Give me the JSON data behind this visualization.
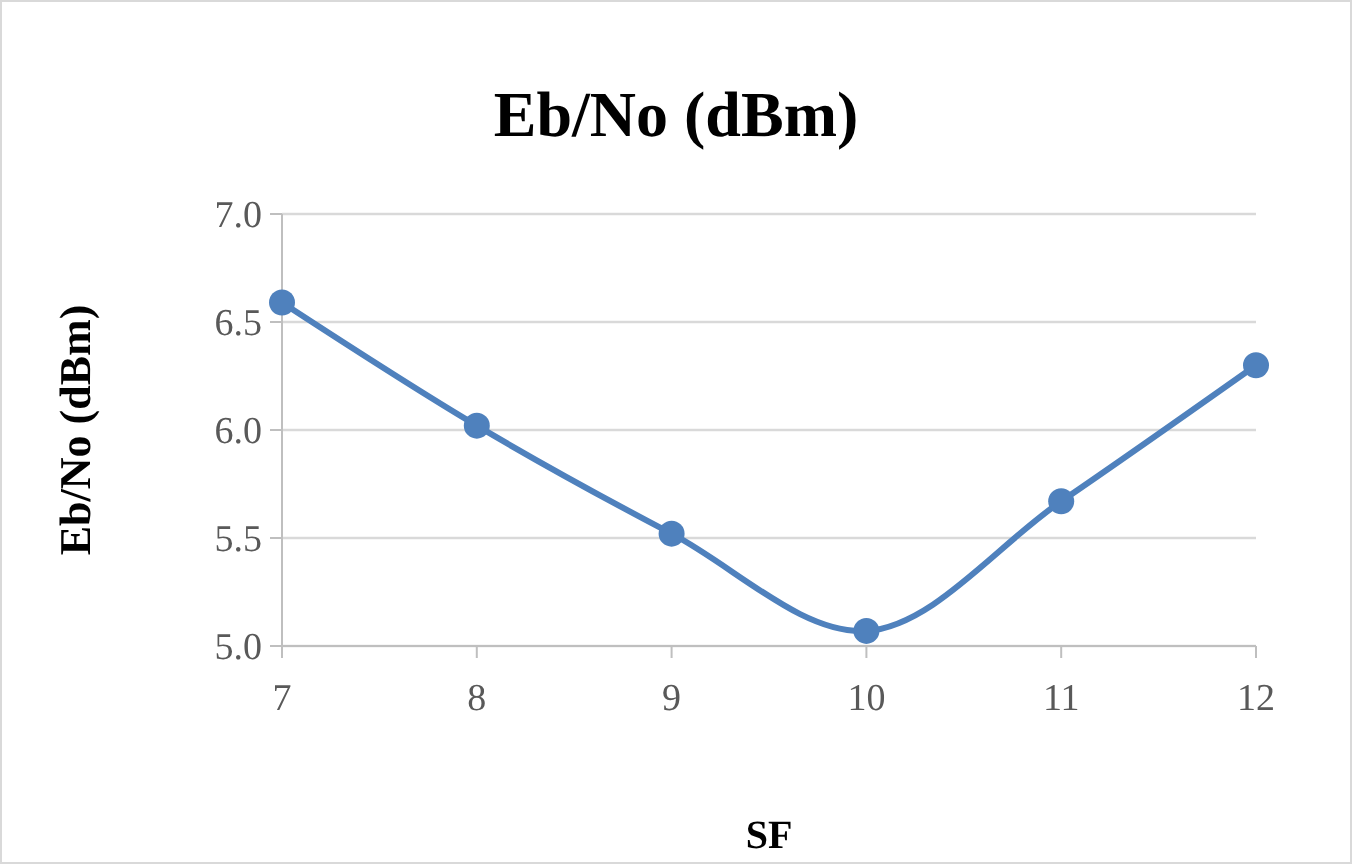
{
  "chart_data": {
    "type": "line",
    "title": "Eb/No (dBm)",
    "xlabel": "SF",
    "ylabel": "Eb/No (dBm)",
    "x": [
      7,
      8,
      9,
      10,
      11,
      12
    ],
    "series": [
      {
        "color": "#4f81bd",
        "values": [
          6.59,
          6.02,
          5.52,
          5.07,
          5.67,
          6.3
        ]
      }
    ],
    "xlim": [
      7,
      12
    ],
    "xticks": [
      7,
      8,
      9,
      10,
      11,
      12
    ],
    "ylim": [
      5,
      7
    ],
    "yticks": [
      {
        "value": 5,
        "label": "5.0"
      },
      {
        "value": 5.5,
        "label": "5.5"
      },
      {
        "value": 6,
        "label": "6.0"
      },
      {
        "value": 6.5,
        "label": "6.5"
      },
      {
        "value": 7,
        "label": "7.0"
      }
    ],
    "grid": "y",
    "marker": "circle",
    "line_style": "solid"
  }
}
